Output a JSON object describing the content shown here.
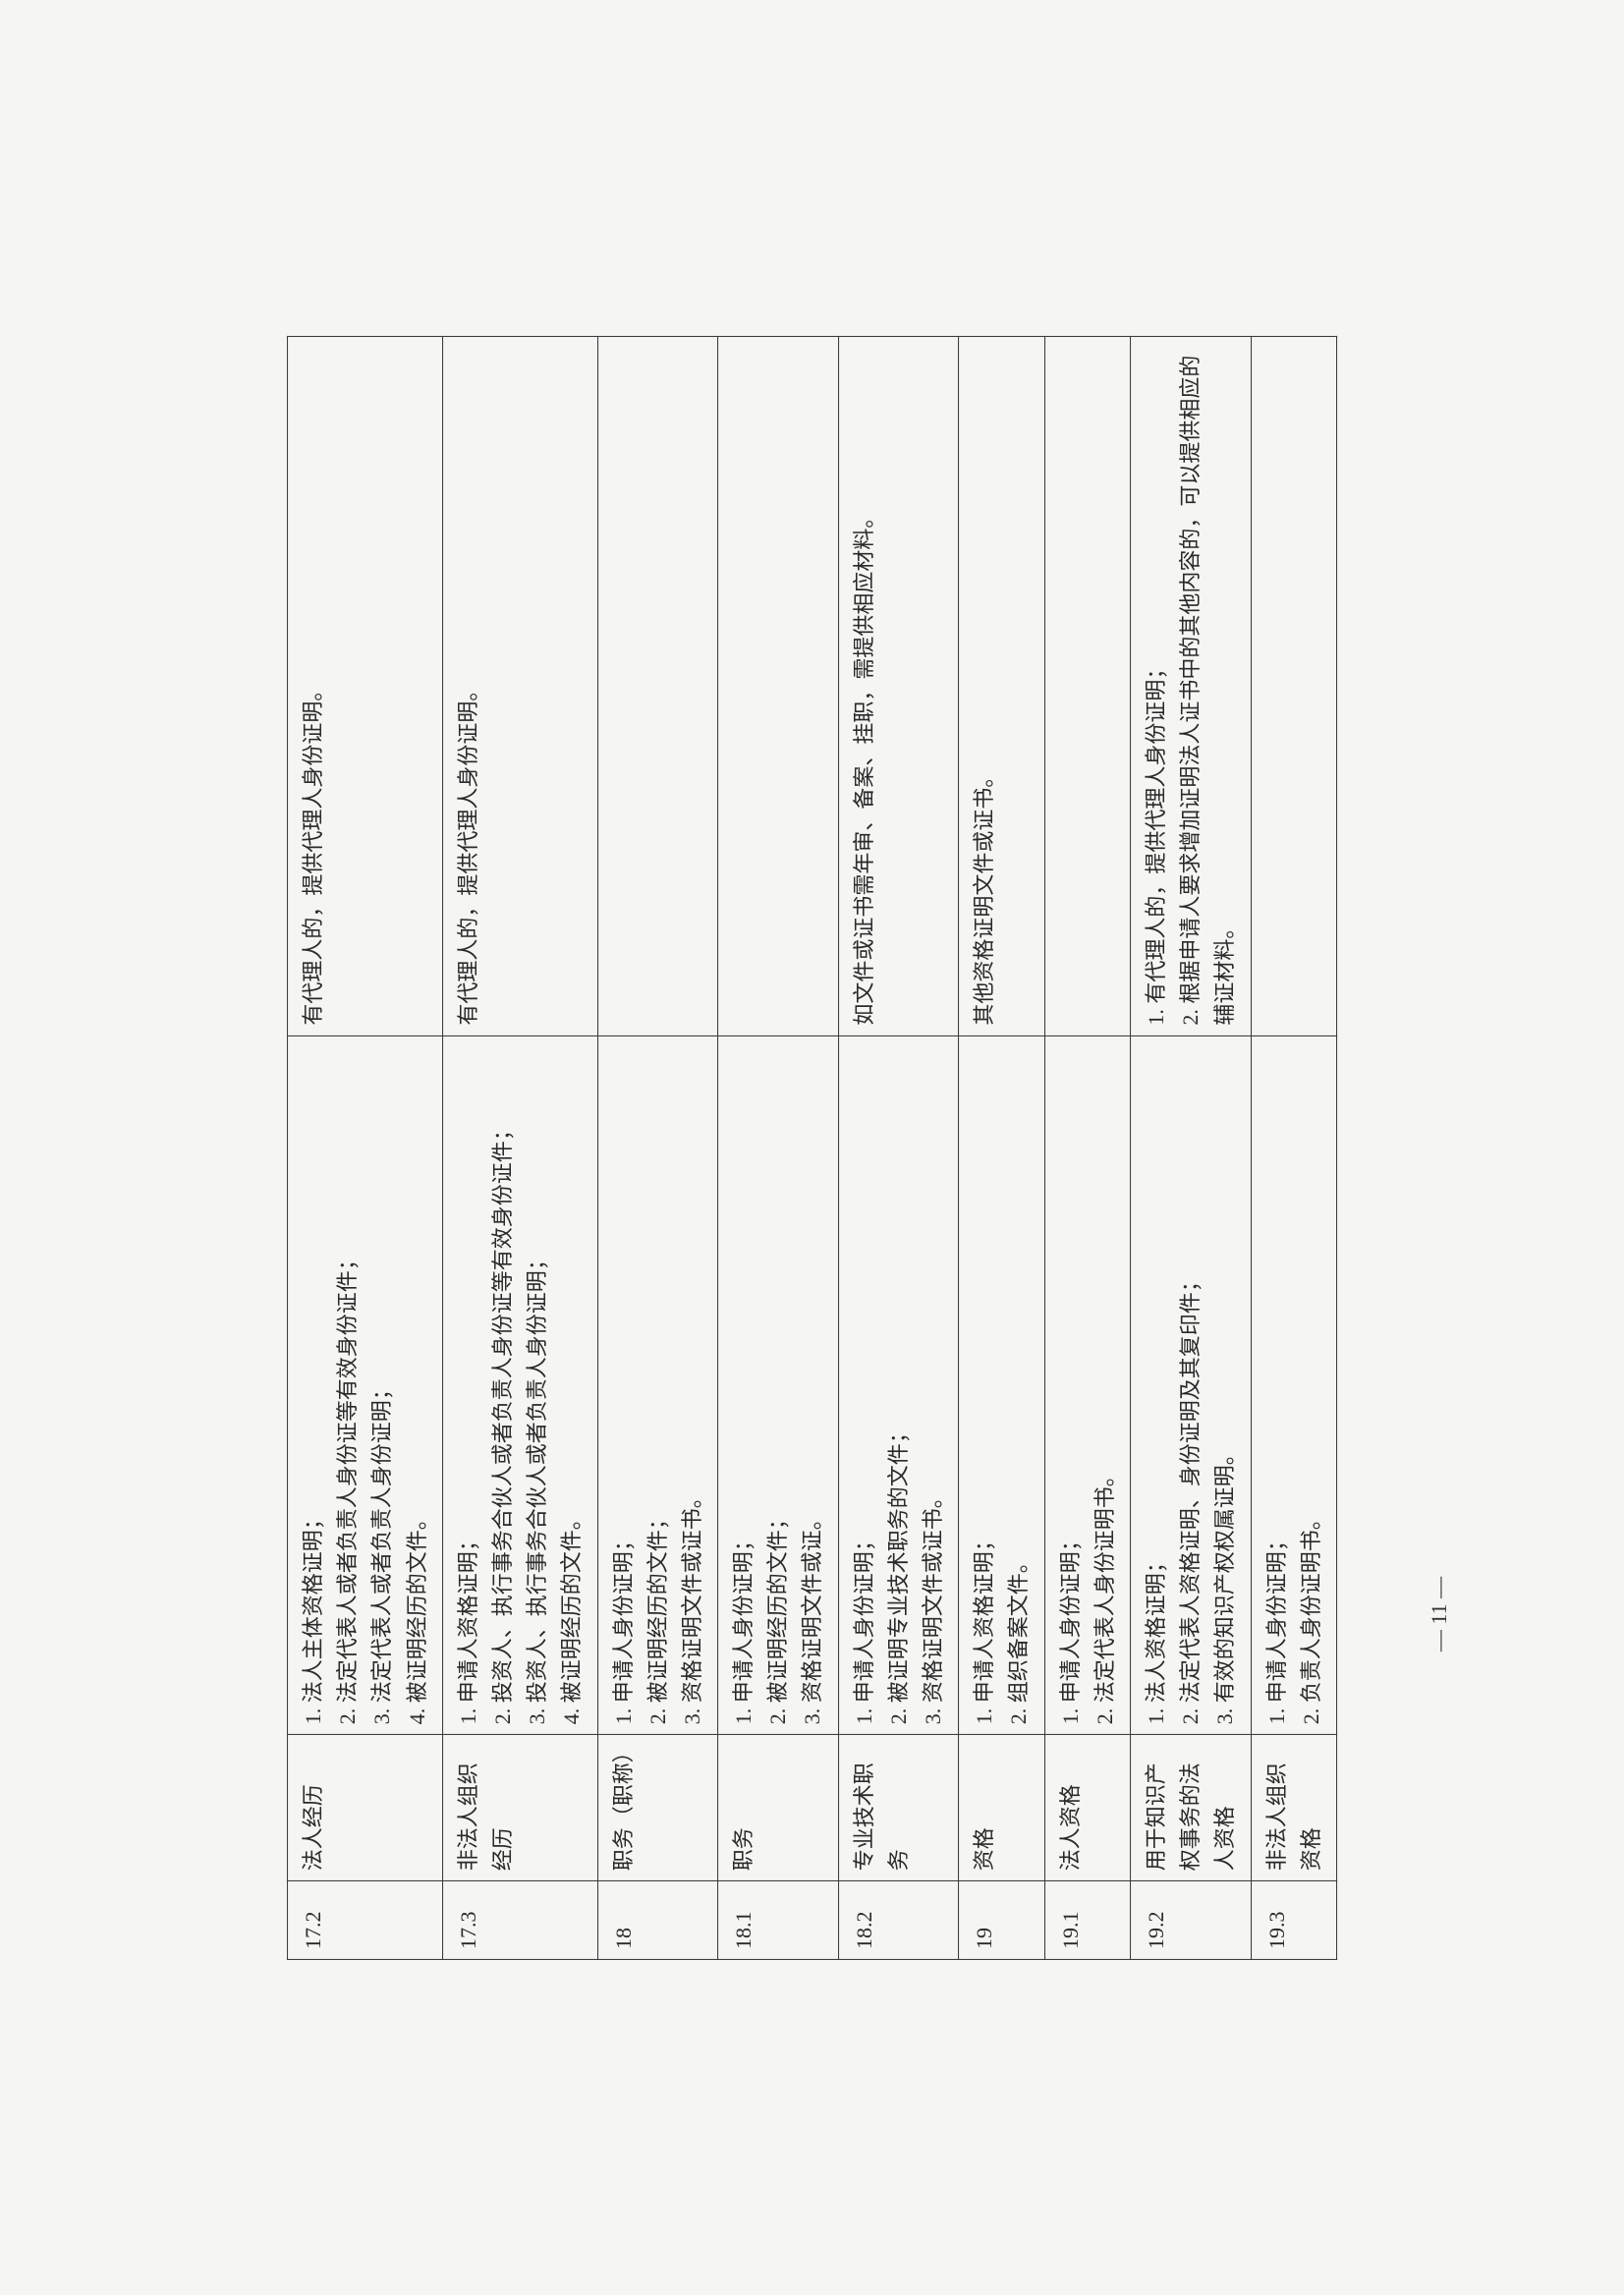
{
  "rows": [
    {
      "num": "17.2",
      "cat": "法人经历",
      "main": "1. 法人主体资格证明；\n2. 法定代表人或者负责人身份证等有效身份证件；\n3. 法定代表人或者负责人身份证明；\n4. 被证明经历的文件。",
      "note": "有代理人的，提供代理人身份证明。"
    },
    {
      "num": "17.3",
      "cat": "非法人组织经历",
      "main": "1. 申请人资格证明；\n2. 投资人、执行事务合伙人或者负责人身份证等有效身份证件；\n3. 投资人、执行事务合伙人或者负责人身份证明；\n4. 被证明经历的文件。",
      "note": "有代理人的，提供代理人身份证明。"
    },
    {
      "num": "18",
      "cat": "职务（职称）",
      "main": "1. 申请人身份证明；\n2. 被证明经历的文件；\n3. 资格证明文件或证书。",
      "note": ""
    },
    {
      "num": "18.1",
      "cat": "职务",
      "main": "1. 申请人身份证明；\n2. 被证明经历的文件；\n3. 资格证明文件或证。",
      "note": ""
    },
    {
      "num": "18.2",
      "cat": "专业技术职务",
      "main": "1. 申请人身份证明；\n2. 被证明专业技术职务的文件；\n3. 资格证明文件或证书。",
      "note": "如文件或证书需年审、备案、挂职，需提供相应材料。"
    },
    {
      "num": "19",
      "cat": "资格",
      "main": "1. 申请人资格证明；\n2. 组织备案文件。",
      "note": "其他资格证明文件或证书。"
    },
    {
      "num": "19.1",
      "cat": "法人资格",
      "main": "1. 申请人身份证明；\n2. 法定代表人身份证明书。",
      "note": ""
    },
    {
      "num": "19.2",
      "cat": "用于知识产权事务的法人资格",
      "main": "1. 法人资格证明；\n2. 法定代表人资格证明、身份证明及其复印件；\n3. 有效的知识产权权属证明。",
      "note": "1. 有代理人的，提供代理人身份证明；\n2. 根据申请人要求增加证明法人证书中的其他内容的，可以提供相应的辅证材料。"
    },
    {
      "num": "19.3",
      "cat": "非法人组织资格",
      "main": "1. 申请人身份证明；\n2. 负责人身份证明书。",
      "note": ""
    }
  ],
  "pageNumber": "— 11 —",
  "colors": {
    "background": "#f5f5f3",
    "border": "#333333",
    "text": "#2a2a2a"
  },
  "fontSize": 22,
  "columnWidths": {
    "num": 80,
    "cat": 150,
    "main": 720,
    "note": 720
  }
}
